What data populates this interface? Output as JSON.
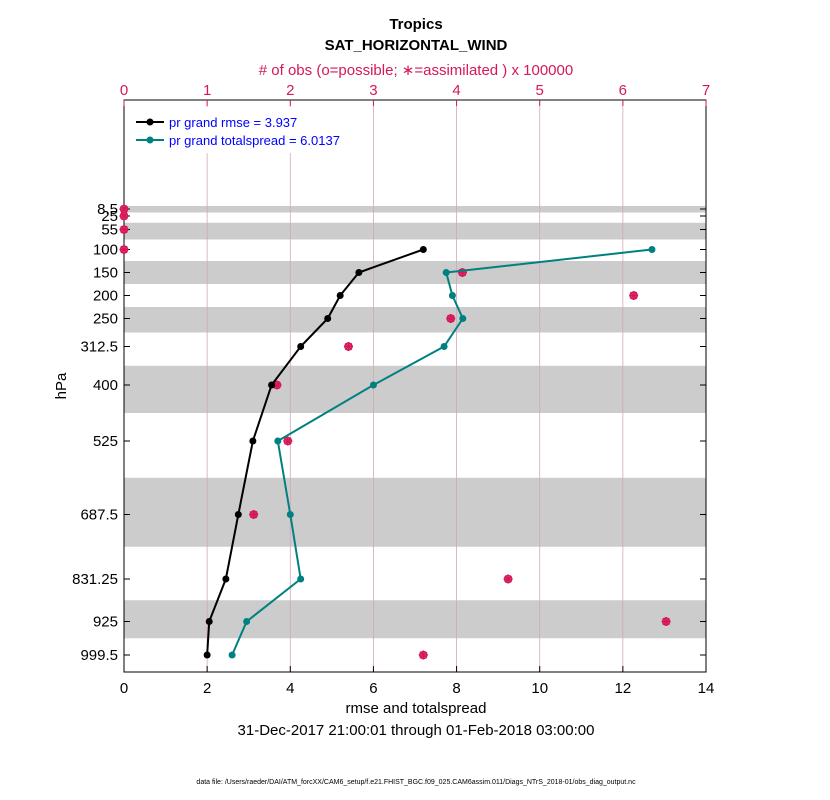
{
  "chart_data": {
    "type": "line",
    "title": "Tropics",
    "subtitle": "SAT_HORIZONTAL_WIND",
    "top_axis_label": "# of obs (o=possible; ∗=assimilated ) x 100000",
    "xlabel": "rmse and totalspread",
    "ylabel": "hPa",
    "date_range": "31-Dec-2017 21:00:01 through 01-Feb-2018 03:00:00",
    "footer": "data file: /Users/raeder/DAI/ATM_forcXX/CAM6_setup/f.e21.FHIST_BGC.f09_025.CAM6assim.011/Diags_NTrS_2018-01/obs_diag_output.nc",
    "xlim": [
      0,
      14
    ],
    "xticks": [
      0,
      2,
      4,
      6,
      8,
      10,
      12,
      14
    ],
    "top_xlim": [
      0,
      7
    ],
    "top_xticks": [
      0,
      1,
      2,
      3,
      4,
      5,
      6,
      7
    ],
    "levels": [
      8.5,
      25,
      55,
      100,
      150,
      200,
      250,
      312.5,
      400,
      525,
      687.5,
      831.25,
      925,
      999.5
    ],
    "level_labels": [
      "8.5",
      "25",
      "55",
      "100",
      "150",
      "200",
      "250",
      "312.5",
      "400",
      "525",
      "687.5",
      "831.25",
      "925",
      "999.5"
    ],
    "series": [
      {
        "name": "pr grand rmse = 3.937",
        "color": "#000000",
        "levels": [
          100,
          150,
          200,
          250,
          312.5,
          400,
          525,
          687.5,
          831.25,
          925,
          999.5
        ],
        "values": [
          7.2,
          5.65,
          5.2,
          4.9,
          4.25,
          3.55,
          3.1,
          2.75,
          2.45,
          2.05,
          2.0
        ]
      },
      {
        "name": "pr grand totalspread = 6.0137",
        "color": "#008080",
        "levels": [
          100,
          150,
          200,
          250,
          312.5,
          400,
          525,
          687.5,
          831.25,
          925,
          999.5
        ],
        "values": [
          12.7,
          7.75,
          7.9,
          8.15,
          7.7,
          6.0,
          3.7,
          4.0,
          4.25,
          2.95,
          2.6
        ]
      }
    ],
    "obs_possible": {
      "levels": [
        8.5,
        25,
        55,
        100,
        150,
        200,
        250,
        312.5,
        400,
        525,
        687.5,
        831.25,
        925,
        999.5
      ],
      "values": [
        0.0,
        0.0,
        0.0,
        0.0,
        4.07,
        6.13,
        3.93,
        2.7,
        1.84,
        1.97,
        1.56,
        4.62,
        6.52,
        3.6
      ]
    },
    "obs_assimilated": {
      "levels": [
        8.5,
        25,
        55,
        100,
        150,
        200,
        250,
        312.5,
        400,
        525,
        687.5,
        831.25,
        925,
        999.5
      ],
      "values": [
        0.0,
        0.0,
        0.0,
        0.0,
        4.07,
        6.13,
        3.93,
        2.7,
        1.84,
        1.97,
        1.56,
        4.62,
        6.52,
        3.6
      ]
    },
    "colors": {
      "obs": "#d6175a",
      "band": "#cccccc",
      "legend_text": "#0000ff"
    }
  }
}
